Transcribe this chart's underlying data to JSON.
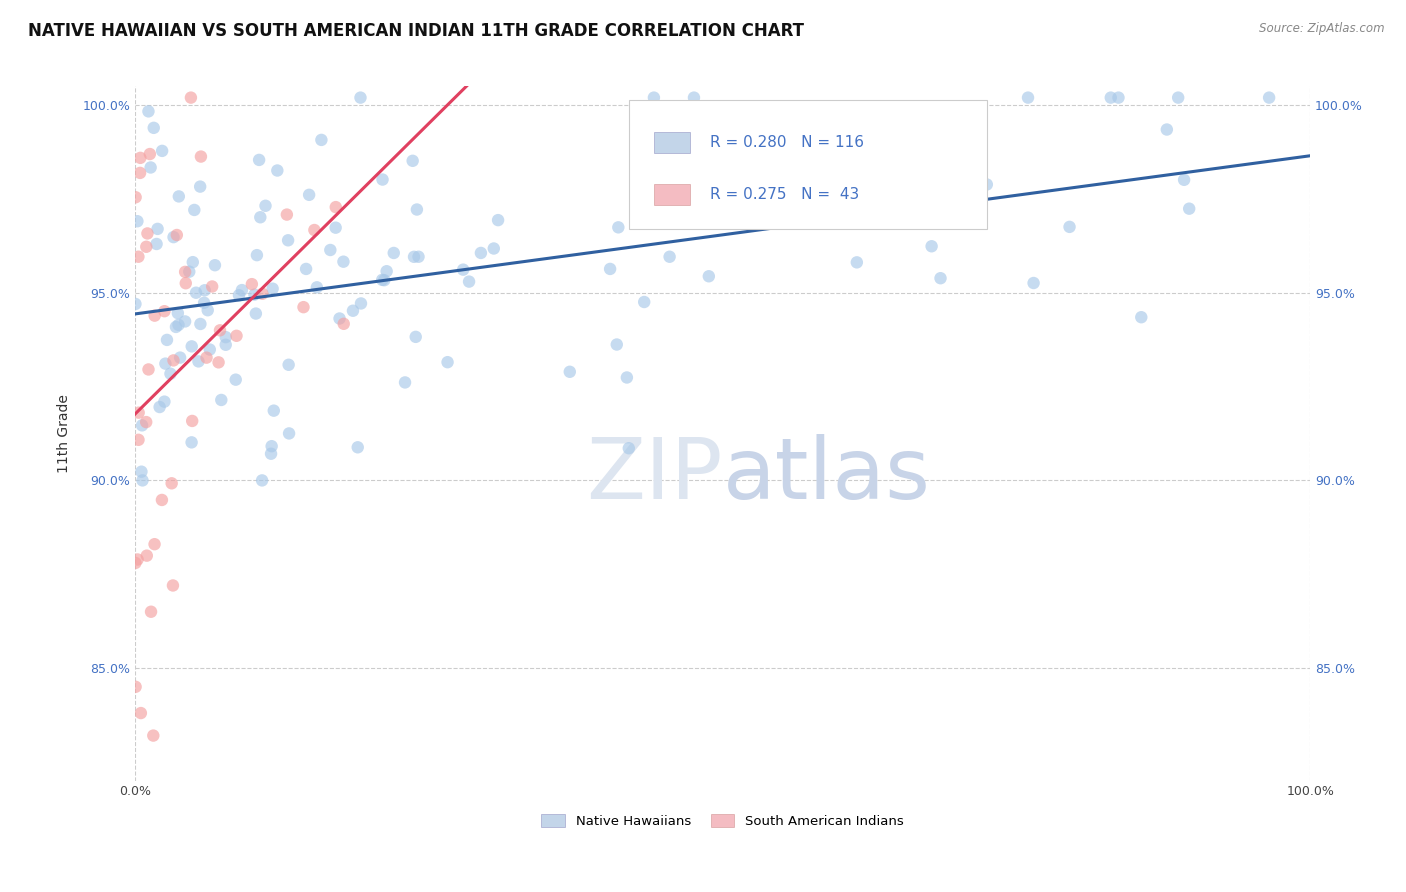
{
  "title": "NATIVE HAWAIIAN VS SOUTH AMERICAN INDIAN 11TH GRADE CORRELATION CHART",
  "source_text": "Source: ZipAtlas.com",
  "ylabel": "11th Grade",
  "xlim": [
    0.0,
    1.0
  ],
  "ylim": [
    0.82,
    1.005
  ],
  "y_tick_positions": [
    0.85,
    0.9,
    0.95,
    1.0
  ],
  "legend_r1": "R = 0.280",
  "legend_n1": "N = 116",
  "legend_r2": "R = 0.275",
  "legend_n2": "N =  43",
  "legend_label1": "Native Hawaiians",
  "legend_label2": "South American Indians",
  "blue_color": "#a8c8e8",
  "pink_color": "#f4a0a0",
  "blue_fill": "#aac4e0",
  "pink_fill": "#f0a0a8",
  "blue_line_color": "#3060a0",
  "pink_line_color": "#e04060",
  "grid_color": "#cccccc",
  "watermark_color": "#dde5f0",
  "tick_color": "#4472c4",
  "title_fontsize": 12,
  "axis_label_fontsize": 10,
  "tick_fontsize": 9,
  "dot_size": 80
}
